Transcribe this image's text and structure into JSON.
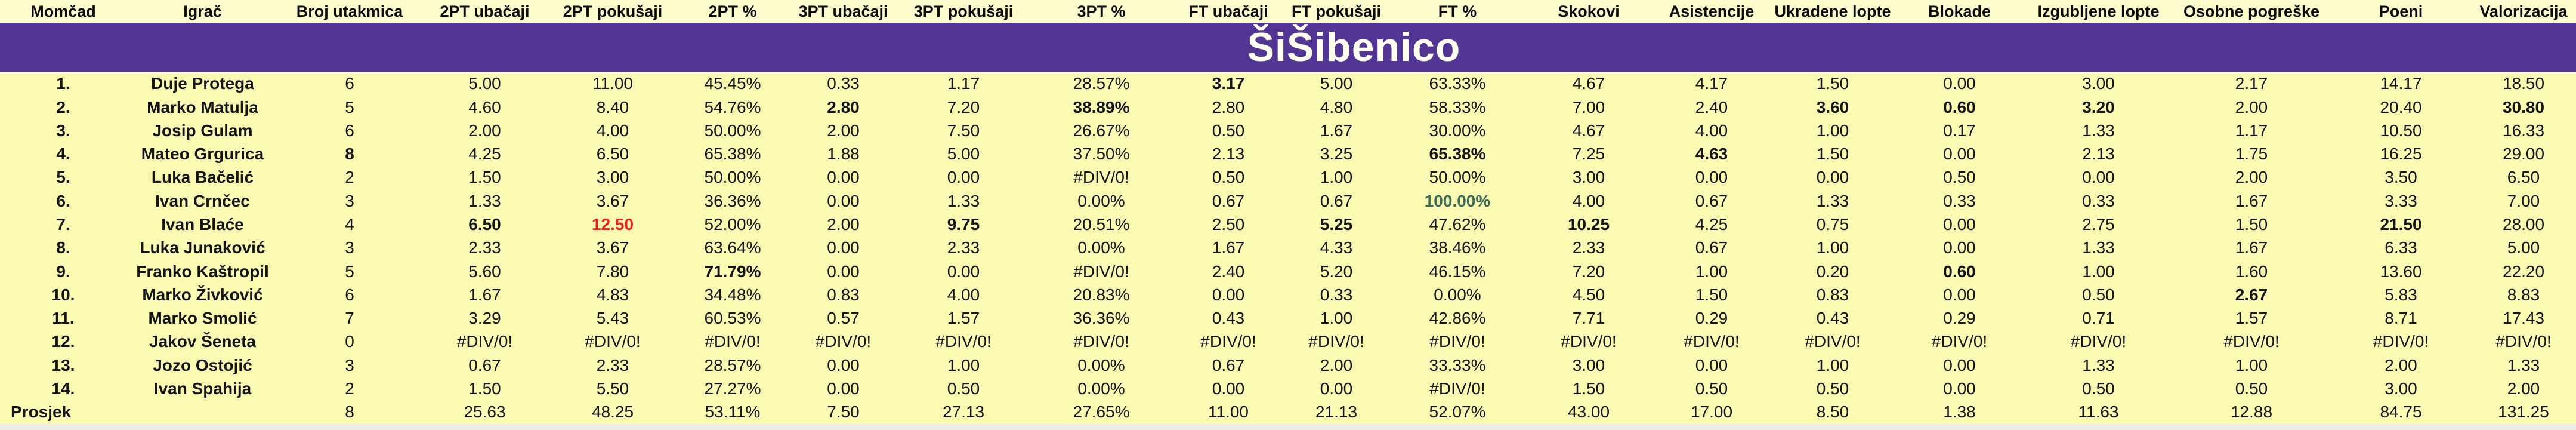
{
  "title": "ŠiŠibenico",
  "colors": {
    "band_purple": "#533594",
    "sheet_yellow": "#FAFAB2",
    "header_yellow": "#FCFCCC",
    "title_text": "#FFFFF2",
    "leader_bold": "#141414",
    "max_attempts_red": "#E8251D",
    "perfect_pct_green": "#3A6A58"
  },
  "table": {
    "columns": [
      "Momčad",
      "Igrač",
      "Broj utakmica",
      "2PT ubačaji",
      "2PT pokušaji",
      "2PT %",
      "3PT ubačaji",
      "3PT pokušaji",
      "3PT %",
      "FT ubačaji",
      "FT pokušaji",
      "FT %",
      "Skokovi",
      "Asistencije",
      "Ukradene lopte",
      "Blokade",
      "Izgubljene lopte",
      "Osobne pogreške",
      "Poeni",
      "Valorizacija"
    ],
    "rows": [
      {
        "cells": [
          "1.",
          "Duje Protega",
          "6",
          "5.00",
          "11.00",
          "45.45%",
          "0.33",
          "1.17",
          "28.57%",
          "3.17",
          "5.00",
          "63.33%",
          "4.67",
          "4.17",
          "1.50",
          "0.00",
          "3.00",
          "2.17",
          "14.17",
          "18.50"
        ],
        "styles": {
          "9": "bold"
        }
      },
      {
        "cells": [
          "2.",
          "Marko Matulja",
          "5",
          "4.60",
          "8.40",
          "54.76%",
          "2.80",
          "7.20",
          "38.89%",
          "2.80",
          "4.80",
          "58.33%",
          "7.00",
          "2.40",
          "3.60",
          "0.60",
          "3.20",
          "2.00",
          "20.40",
          "30.80"
        ],
        "styles": {
          "6": "bold",
          "8": "bold",
          "14": "bold",
          "15": "bold",
          "16": "bold",
          "19": "bold"
        }
      },
      {
        "cells": [
          "3.",
          "Josip Gulam",
          "6",
          "2.00",
          "4.00",
          "50.00%",
          "2.00",
          "7.50",
          "26.67%",
          "0.50",
          "1.67",
          "30.00%",
          "4.67",
          "4.00",
          "1.00",
          "0.17",
          "1.33",
          "1.17",
          "10.50",
          "16.33"
        ],
        "styles": {}
      },
      {
        "cells": [
          "4.",
          "Mateo Grgurica",
          "8",
          "4.25",
          "6.50",
          "65.38%",
          "1.88",
          "5.00",
          "37.50%",
          "2.13",
          "3.25",
          "65.38%",
          "7.25",
          "4.63",
          "1.50",
          "0.00",
          "2.13",
          "1.75",
          "16.25",
          "29.00"
        ],
        "styles": {
          "2": "bold",
          "11": "bold",
          "13": "bold"
        }
      },
      {
        "cells": [
          "5.",
          "Luka Bačelić",
          "2",
          "1.50",
          "3.00",
          "50.00%",
          "0.00",
          "0.00",
          "#DIV/0!",
          "0.50",
          "1.00",
          "50.00%",
          "3.00",
          "0.00",
          "0.00",
          "0.50",
          "0.00",
          "2.00",
          "3.50",
          "6.50"
        ],
        "styles": {}
      },
      {
        "cells": [
          "6.",
          "Ivan Crnčec",
          "3",
          "1.33",
          "3.67",
          "36.36%",
          "0.00",
          "1.33",
          "0.00%",
          "0.67",
          "0.67",
          "100.00%",
          "4.00",
          "0.67",
          "1.33",
          "0.33",
          "0.33",
          "1.67",
          "3.33",
          "7.00"
        ],
        "styles": {
          "11": "green"
        }
      },
      {
        "cells": [
          "7.",
          "Ivan Blaće",
          "4",
          "6.50",
          "12.50",
          "52.00%",
          "2.00",
          "9.75",
          "20.51%",
          "2.50",
          "5.25",
          "47.62%",
          "10.25",
          "4.25",
          "0.75",
          "0.00",
          "2.75",
          "1.50",
          "21.50",
          "28.00"
        ],
        "styles": {
          "3": "bold",
          "4": "red",
          "7": "bold",
          "10": "bold",
          "12": "bold",
          "18": "bold"
        }
      },
      {
        "cells": [
          "8.",
          "Luka Junaković",
          "3",
          "2.33",
          "3.67",
          "63.64%",
          "0.00",
          "2.33",
          "0.00%",
          "1.67",
          "4.33",
          "38.46%",
          "2.33",
          "0.67",
          "1.00",
          "0.00",
          "1.33",
          "1.67",
          "6.33",
          "5.00"
        ],
        "styles": {}
      },
      {
        "cells": [
          "9.",
          "Franko Kaštropil",
          "5",
          "5.60",
          "7.80",
          "71.79%",
          "0.00",
          "0.00",
          "#DIV/0!",
          "2.40",
          "5.20",
          "46.15%",
          "7.20",
          "1.00",
          "0.20",
          "0.60",
          "1.00",
          "1.60",
          "13.60",
          "22.20"
        ],
        "styles": {
          "5": "bold",
          "15": "bold"
        }
      },
      {
        "cells": [
          "10.",
          "Marko Živković",
          "6",
          "1.67",
          "4.83",
          "34.48%",
          "0.83",
          "4.00",
          "20.83%",
          "0.00",
          "0.33",
          "0.00%",
          "4.50",
          "1.50",
          "0.83",
          "0.00",
          "0.50",
          "2.67",
          "5.83",
          "8.83"
        ],
        "styles": {
          "17": "bold"
        }
      },
      {
        "cells": [
          "11.",
          "Marko Smolić",
          "7",
          "3.29",
          "5.43",
          "60.53%",
          "0.57",
          "1.57",
          "36.36%",
          "0.43",
          "1.00",
          "42.86%",
          "7.71",
          "0.29",
          "0.43",
          "0.29",
          "0.71",
          "1.57",
          "8.71",
          "17.43"
        ],
        "styles": {}
      },
      {
        "cells": [
          "12.",
          "Jakov Šeneta",
          "0",
          "#DIV/0!",
          "#DIV/0!",
          "#DIV/0!",
          "#DIV/0!",
          "#DIV/0!",
          "#DIV/0!",
          "#DIV/0!",
          "#DIV/0!",
          "#DIV/0!",
          "#DIV/0!",
          "#DIV/0!",
          "#DIV/0!",
          "#DIV/0!",
          "#DIV/0!",
          "#DIV/0!",
          "#DIV/0!",
          "#DIV/0!"
        ],
        "styles": {}
      },
      {
        "cells": [
          "13.",
          "Jozo Ostojić",
          "3",
          "0.67",
          "2.33",
          "28.57%",
          "0.00",
          "1.00",
          "0.00%",
          "0.67",
          "2.00",
          "33.33%",
          "3.00",
          "0.00",
          "1.00",
          "0.00",
          "1.33",
          "1.00",
          "2.00",
          "1.33"
        ],
        "styles": {}
      },
      {
        "cells": [
          "14.",
          "Ivan Spahija",
          "2",
          "1.50",
          "5.50",
          "27.27%",
          "0.00",
          "0.50",
          "0.00%",
          "0.00",
          "0.00",
          "#DIV/0!",
          "1.50",
          "0.50",
          "0.50",
          "0.00",
          "0.50",
          "0.50",
          "3.00",
          "2.00"
        ],
        "styles": {}
      },
      {
        "cells": [
          "Prosjek",
          "",
          "8",
          "25.63",
          "48.25",
          "53.11%",
          "7.50",
          "27.13",
          "27.65%",
          "11.00",
          "21.13",
          "52.07%",
          "43.00",
          "17.00",
          "8.50",
          "1.38",
          "11.63",
          "12.88",
          "84.75",
          "131.25"
        ],
        "styles": {},
        "summary": true
      }
    ]
  }
}
